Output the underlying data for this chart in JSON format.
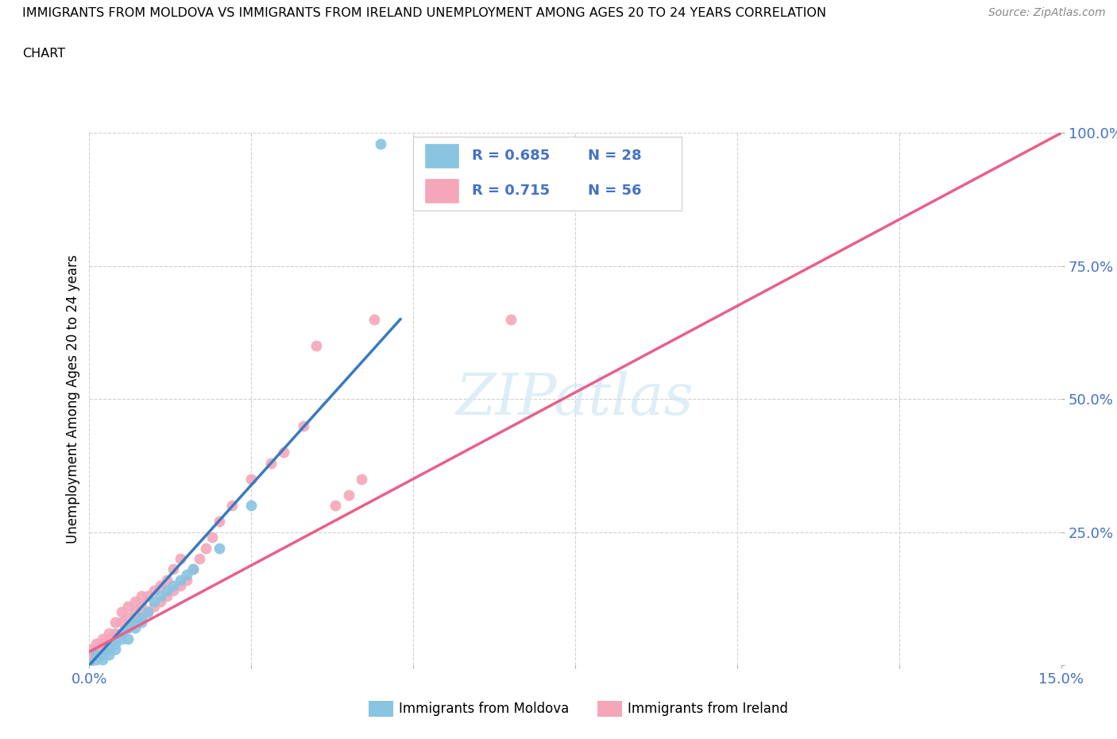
{
  "title_line1": "IMMIGRANTS FROM MOLDOVA VS IMMIGRANTS FROM IRELAND UNEMPLOYMENT AMONG AGES 20 TO 24 YEARS CORRELATION",
  "title_line2": "CHART",
  "source": "Source: ZipAtlas.com",
  "ylabel": "Unemployment Among Ages 20 to 24 years",
  "xlim": [
    0.0,
    0.15
  ],
  "ylim": [
    0.0,
    1.0
  ],
  "xticks": [
    0.0,
    0.025,
    0.05,
    0.075,
    0.1,
    0.125,
    0.15
  ],
  "xticklabels": [
    "0.0%",
    "",
    "",
    "",
    "",
    "",
    "15.0%"
  ],
  "yticks": [
    0.0,
    0.25,
    0.5,
    0.75,
    1.0
  ],
  "yticklabels": [
    "",
    "25.0%",
    "50.0%",
    "75.0%",
    "100.0%"
  ],
  "moldova_color": "#89c4e1",
  "ireland_color": "#f4a7b9",
  "moldova_line_color": "#3a7abf",
  "ireland_line_color": "#e8608a",
  "moldova_R": 0.685,
  "moldova_N": 28,
  "ireland_R": 0.715,
  "ireland_N": 56,
  "legend_R_color": "#4472c4",
  "watermark_text": "ZIPatlas",
  "moldova_line": [
    [
      0.0,
      0.0
    ],
    [
      0.048,
      0.65
    ]
  ],
  "ireland_line": [
    [
      0.0,
      0.025
    ],
    [
      0.15,
      1.0
    ]
  ],
  "moldova_scatter": [
    [
      0.0,
      0.0
    ],
    [
      0.001,
      0.01
    ],
    [
      0.001,
      0.02
    ],
    [
      0.002,
      0.01
    ],
    [
      0.002,
      0.02
    ],
    [
      0.003,
      0.02
    ],
    [
      0.003,
      0.03
    ],
    [
      0.004,
      0.03
    ],
    [
      0.004,
      0.04
    ],
    [
      0.005,
      0.05
    ],
    [
      0.005,
      0.06
    ],
    [
      0.006,
      0.05
    ],
    [
      0.006,
      0.07
    ],
    [
      0.007,
      0.07
    ],
    [
      0.007,
      0.08
    ],
    [
      0.008,
      0.08
    ],
    [
      0.008,
      0.09
    ],
    [
      0.009,
      0.1
    ],
    [
      0.01,
      0.12
    ],
    [
      0.011,
      0.13
    ],
    [
      0.012,
      0.14
    ],
    [
      0.013,
      0.15
    ],
    [
      0.014,
      0.16
    ],
    [
      0.015,
      0.17
    ],
    [
      0.016,
      0.18
    ],
    [
      0.02,
      0.22
    ],
    [
      0.025,
      0.3
    ],
    [
      0.045,
      0.98
    ]
  ],
  "ireland_scatter": [
    [
      0.0,
      0.01
    ],
    [
      0.0,
      0.02
    ],
    [
      0.0,
      0.03
    ],
    [
      0.001,
      0.02
    ],
    [
      0.001,
      0.03
    ],
    [
      0.001,
      0.04
    ],
    [
      0.002,
      0.03
    ],
    [
      0.002,
      0.04
    ],
    [
      0.002,
      0.05
    ],
    [
      0.003,
      0.04
    ],
    [
      0.003,
      0.05
    ],
    [
      0.003,
      0.06
    ],
    [
      0.004,
      0.05
    ],
    [
      0.004,
      0.06
    ],
    [
      0.004,
      0.08
    ],
    [
      0.005,
      0.06
    ],
    [
      0.005,
      0.08
    ],
    [
      0.005,
      0.1
    ],
    [
      0.006,
      0.07
    ],
    [
      0.006,
      0.09
    ],
    [
      0.006,
      0.11
    ],
    [
      0.007,
      0.08
    ],
    [
      0.007,
      0.1
    ],
    [
      0.007,
      0.12
    ],
    [
      0.008,
      0.09
    ],
    [
      0.008,
      0.11
    ],
    [
      0.008,
      0.13
    ],
    [
      0.009,
      0.1
    ],
    [
      0.009,
      0.13
    ],
    [
      0.01,
      0.11
    ],
    [
      0.01,
      0.14
    ],
    [
      0.011,
      0.12
    ],
    [
      0.011,
      0.15
    ],
    [
      0.012,
      0.13
    ],
    [
      0.012,
      0.16
    ],
    [
      0.013,
      0.14
    ],
    [
      0.013,
      0.18
    ],
    [
      0.014,
      0.15
    ],
    [
      0.014,
      0.2
    ],
    [
      0.015,
      0.16
    ],
    [
      0.016,
      0.18
    ],
    [
      0.017,
      0.2
    ],
    [
      0.018,
      0.22
    ],
    [
      0.019,
      0.24
    ],
    [
      0.02,
      0.27
    ],
    [
      0.022,
      0.3
    ],
    [
      0.025,
      0.35
    ],
    [
      0.028,
      0.38
    ],
    [
      0.03,
      0.4
    ],
    [
      0.033,
      0.45
    ],
    [
      0.035,
      0.6
    ],
    [
      0.038,
      0.3
    ],
    [
      0.04,
      0.32
    ],
    [
      0.042,
      0.35
    ],
    [
      0.044,
      0.65
    ],
    [
      0.065,
      0.65
    ]
  ]
}
